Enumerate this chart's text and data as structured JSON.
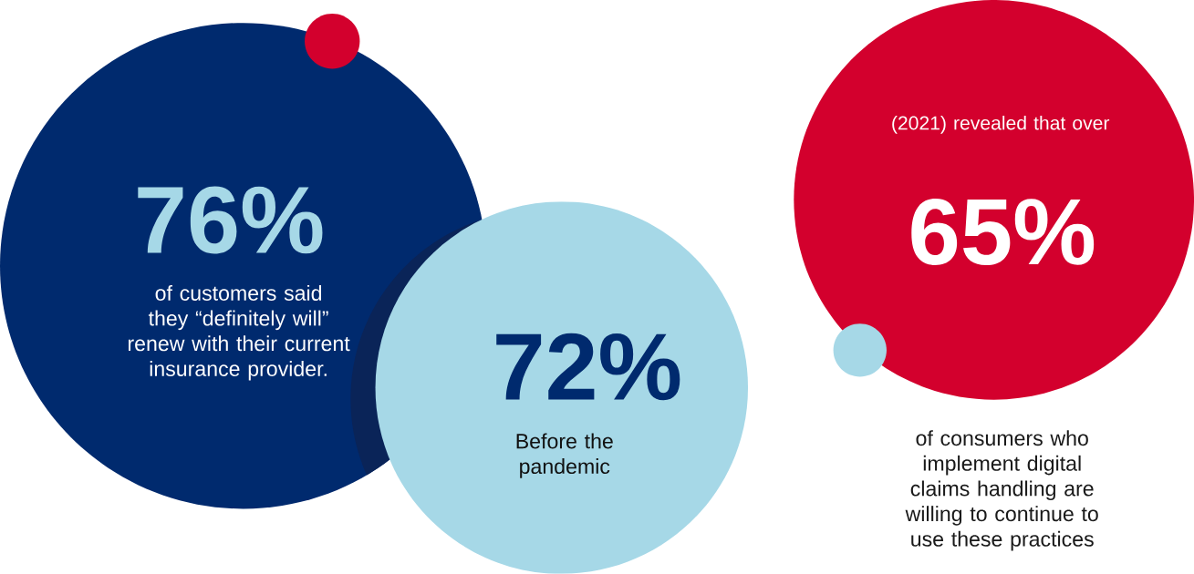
{
  "chart_data": {
    "type": "other",
    "categories": [
      "of customers said they “definitely will” renew with their current insurance provider.",
      "Before the pandemic",
      "of consumers who implement digital claims handling are willing to continue to use these practices"
    ],
    "values": [
      76,
      72,
      65
    ],
    "value_labels": [
      "76%",
      "72%",
      "65%"
    ],
    "colors": [
      "#002a6e",
      "#a6d8e7",
      "#d3002d"
    ],
    "annotations": [
      "(2021) revealed that over"
    ]
  }
}
